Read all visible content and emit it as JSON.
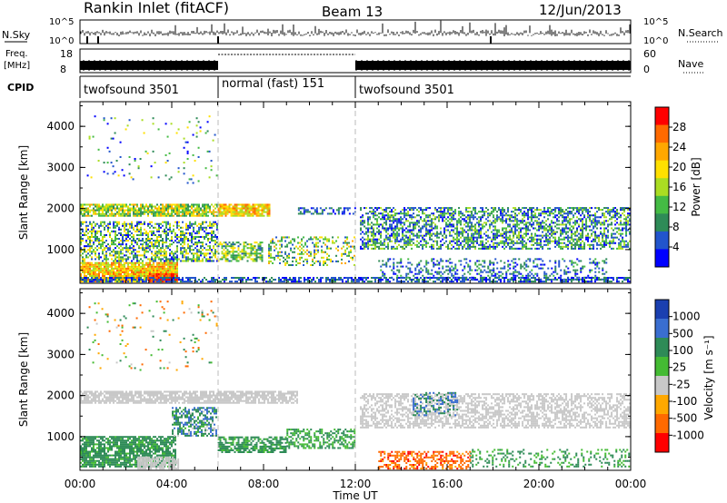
{
  "header": {
    "title": "Rankin Inlet (fitACF)",
    "beam": "Beam 13",
    "date": "12/Jun/2013"
  },
  "strip": {
    "nsky_label": "N.Sky",
    "nsky_ticks": [
      "10^5",
      "10^0"
    ],
    "nsearch_label": "N.Search",
    "nsearch_ticks": [
      "10^5",
      "10^0"
    ],
    "freq_label": "Freq.",
    "freq_unit": "[MHz]",
    "freq_ticks": [
      "18",
      "8"
    ],
    "nave_label": "Nave",
    "nave_ticks": [
      "60",
      "0"
    ],
    "cpid_label": "CPID",
    "cpid_segments": [
      {
        "label": "twofsound 3501",
        "start_h": 0,
        "end_h": 6
      },
      {
        "label": "normal (fast) 151",
        "start_h": 6,
        "end_h": 12
      },
      {
        "label": "twofsound 3501",
        "start_h": 12,
        "end_h": 24
      }
    ]
  },
  "axes": {
    "ylabel": "Slant Range [km]",
    "xlabel": "Time UT",
    "yticks": [
      "1000",
      "2000",
      "3000",
      "4000"
    ],
    "xticks": [
      "00:00",
      "04:00",
      "08:00",
      "12:00",
      "16:00",
      "20:00",
      "00:00"
    ]
  },
  "power_scale": {
    "label": "Power [dB]",
    "ticks": [
      "28",
      "24",
      "20",
      "16",
      "12",
      "8",
      "4"
    ],
    "colors": [
      "#ff0000",
      "#ff6a00",
      "#ffa800",
      "#ffe000",
      "#aadd22",
      "#44bb44",
      "#2e8b57",
      "#2255cc",
      "#0000ff"
    ]
  },
  "velocity_scale": {
    "label": "Velocity [m s⁻¹]",
    "ticks": [
      "1000",
      "500",
      "100",
      "25",
      "-25",
      "-100",
      "-500",
      "-1000"
    ],
    "colors": [
      "#1a3fb0",
      "#3a6ed0",
      "#2e8b57",
      "#44bb33",
      "#c8c8c8",
      "#ffa800",
      "#ff6a00",
      "#ff0000"
    ]
  },
  "chart_data": [
    {
      "type": "heatmap",
      "name": "power",
      "xlabel": "Time UT",
      "ylabel": "Slant Range [km]",
      "xlim": [
        0,
        24
      ],
      "ylim": [
        180,
        4600
      ],
      "colorbar": "Power [dB]",
      "colorbar_ticks": [
        4,
        8,
        12,
        16,
        20,
        24,
        28
      ],
      "dominant_echo_bands": [
        {
          "t_start": 0,
          "t_end": 4.5,
          "range_min": 200,
          "range_max": 700,
          "approx_db": 24
        },
        {
          "t_start": 0,
          "t_end": 6,
          "range_min": 1800,
          "range_max": 2100,
          "approx_db": 16
        },
        {
          "t_start": 6,
          "t_end": 8,
          "range_min": 1800,
          "range_max": 2100,
          "approx_db": 22
        },
        {
          "t_start": 12.5,
          "t_end": 24,
          "range_min": 1000,
          "range_max": 2000,
          "approx_db": 12
        }
      ]
    },
    {
      "type": "heatmap",
      "name": "velocity",
      "xlabel": "Time UT",
      "ylabel": "Slant Range [km]",
      "xlim": [
        0,
        24
      ],
      "ylim": [
        180,
        4600
      ],
      "colorbar": "Velocity [m s⁻¹]",
      "colorbar_ticks": [
        -1000,
        -500,
        -100,
        -25,
        25,
        100,
        500,
        1000
      ],
      "dominant_echo_bands": [
        {
          "t_start": 0,
          "t_end": 4,
          "range_min": 300,
          "range_max": 1000,
          "approx_velocity": 150
        },
        {
          "t_start": 0,
          "t_end": 9,
          "range_min": 1800,
          "range_max": 2100,
          "approx_velocity": 0
        },
        {
          "t_start": 6,
          "t_end": 9,
          "range_min": 600,
          "range_max": 1000,
          "approx_velocity": 150
        },
        {
          "t_start": 13,
          "t_end": 17,
          "range_min": 200,
          "range_max": 600,
          "approx_velocity": -300
        }
      ]
    }
  ]
}
